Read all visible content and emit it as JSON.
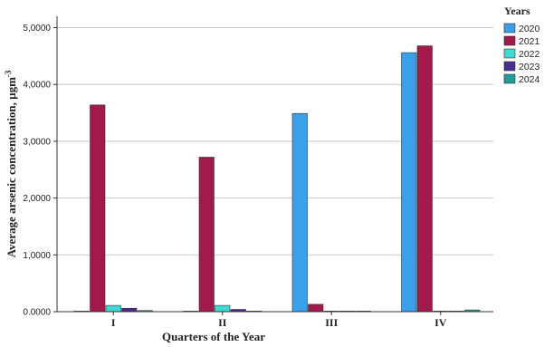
{
  "chart_data": {
    "type": "bar",
    "xlabel": "Quarters of the Year",
    "ylabel": "Average arsenic concentration, µgm",
    "ylabel_superscript": "-3",
    "categories": [
      "I",
      "II",
      "III",
      "IV"
    ],
    "ylim": [
      0,
      5.2
    ],
    "yticks": [
      0,
      1,
      2,
      3,
      4,
      5
    ],
    "ytick_labels": [
      "0.0000",
      "1,0000",
      "2,0000",
      "3,0000",
      "4,0000",
      "5,0000"
    ],
    "grid": "horizontal",
    "legend_title": "Years",
    "legend_position": "top-right",
    "series": [
      {
        "name": "2020",
        "color": "#3BA0E8",
        "values": [
          0,
          0,
          3.49,
          4.56
        ]
      },
      {
        "name": "2021",
        "color": "#A01A4C",
        "values": [
          3.64,
          2.72,
          0.13,
          4.68
        ]
      },
      {
        "name": "2022",
        "color": "#3FD9D2",
        "values": [
          0.11,
          0.11,
          0.01,
          0.01
        ]
      },
      {
        "name": "2023",
        "color": "#4B2D8F",
        "values": [
          0.06,
          0.04,
          0.01,
          0.01
        ]
      },
      {
        "name": "2024",
        "color": "#1F9C9A",
        "values": [
          0.02,
          0.01,
          0.01,
          0.03
        ]
      }
    ]
  }
}
